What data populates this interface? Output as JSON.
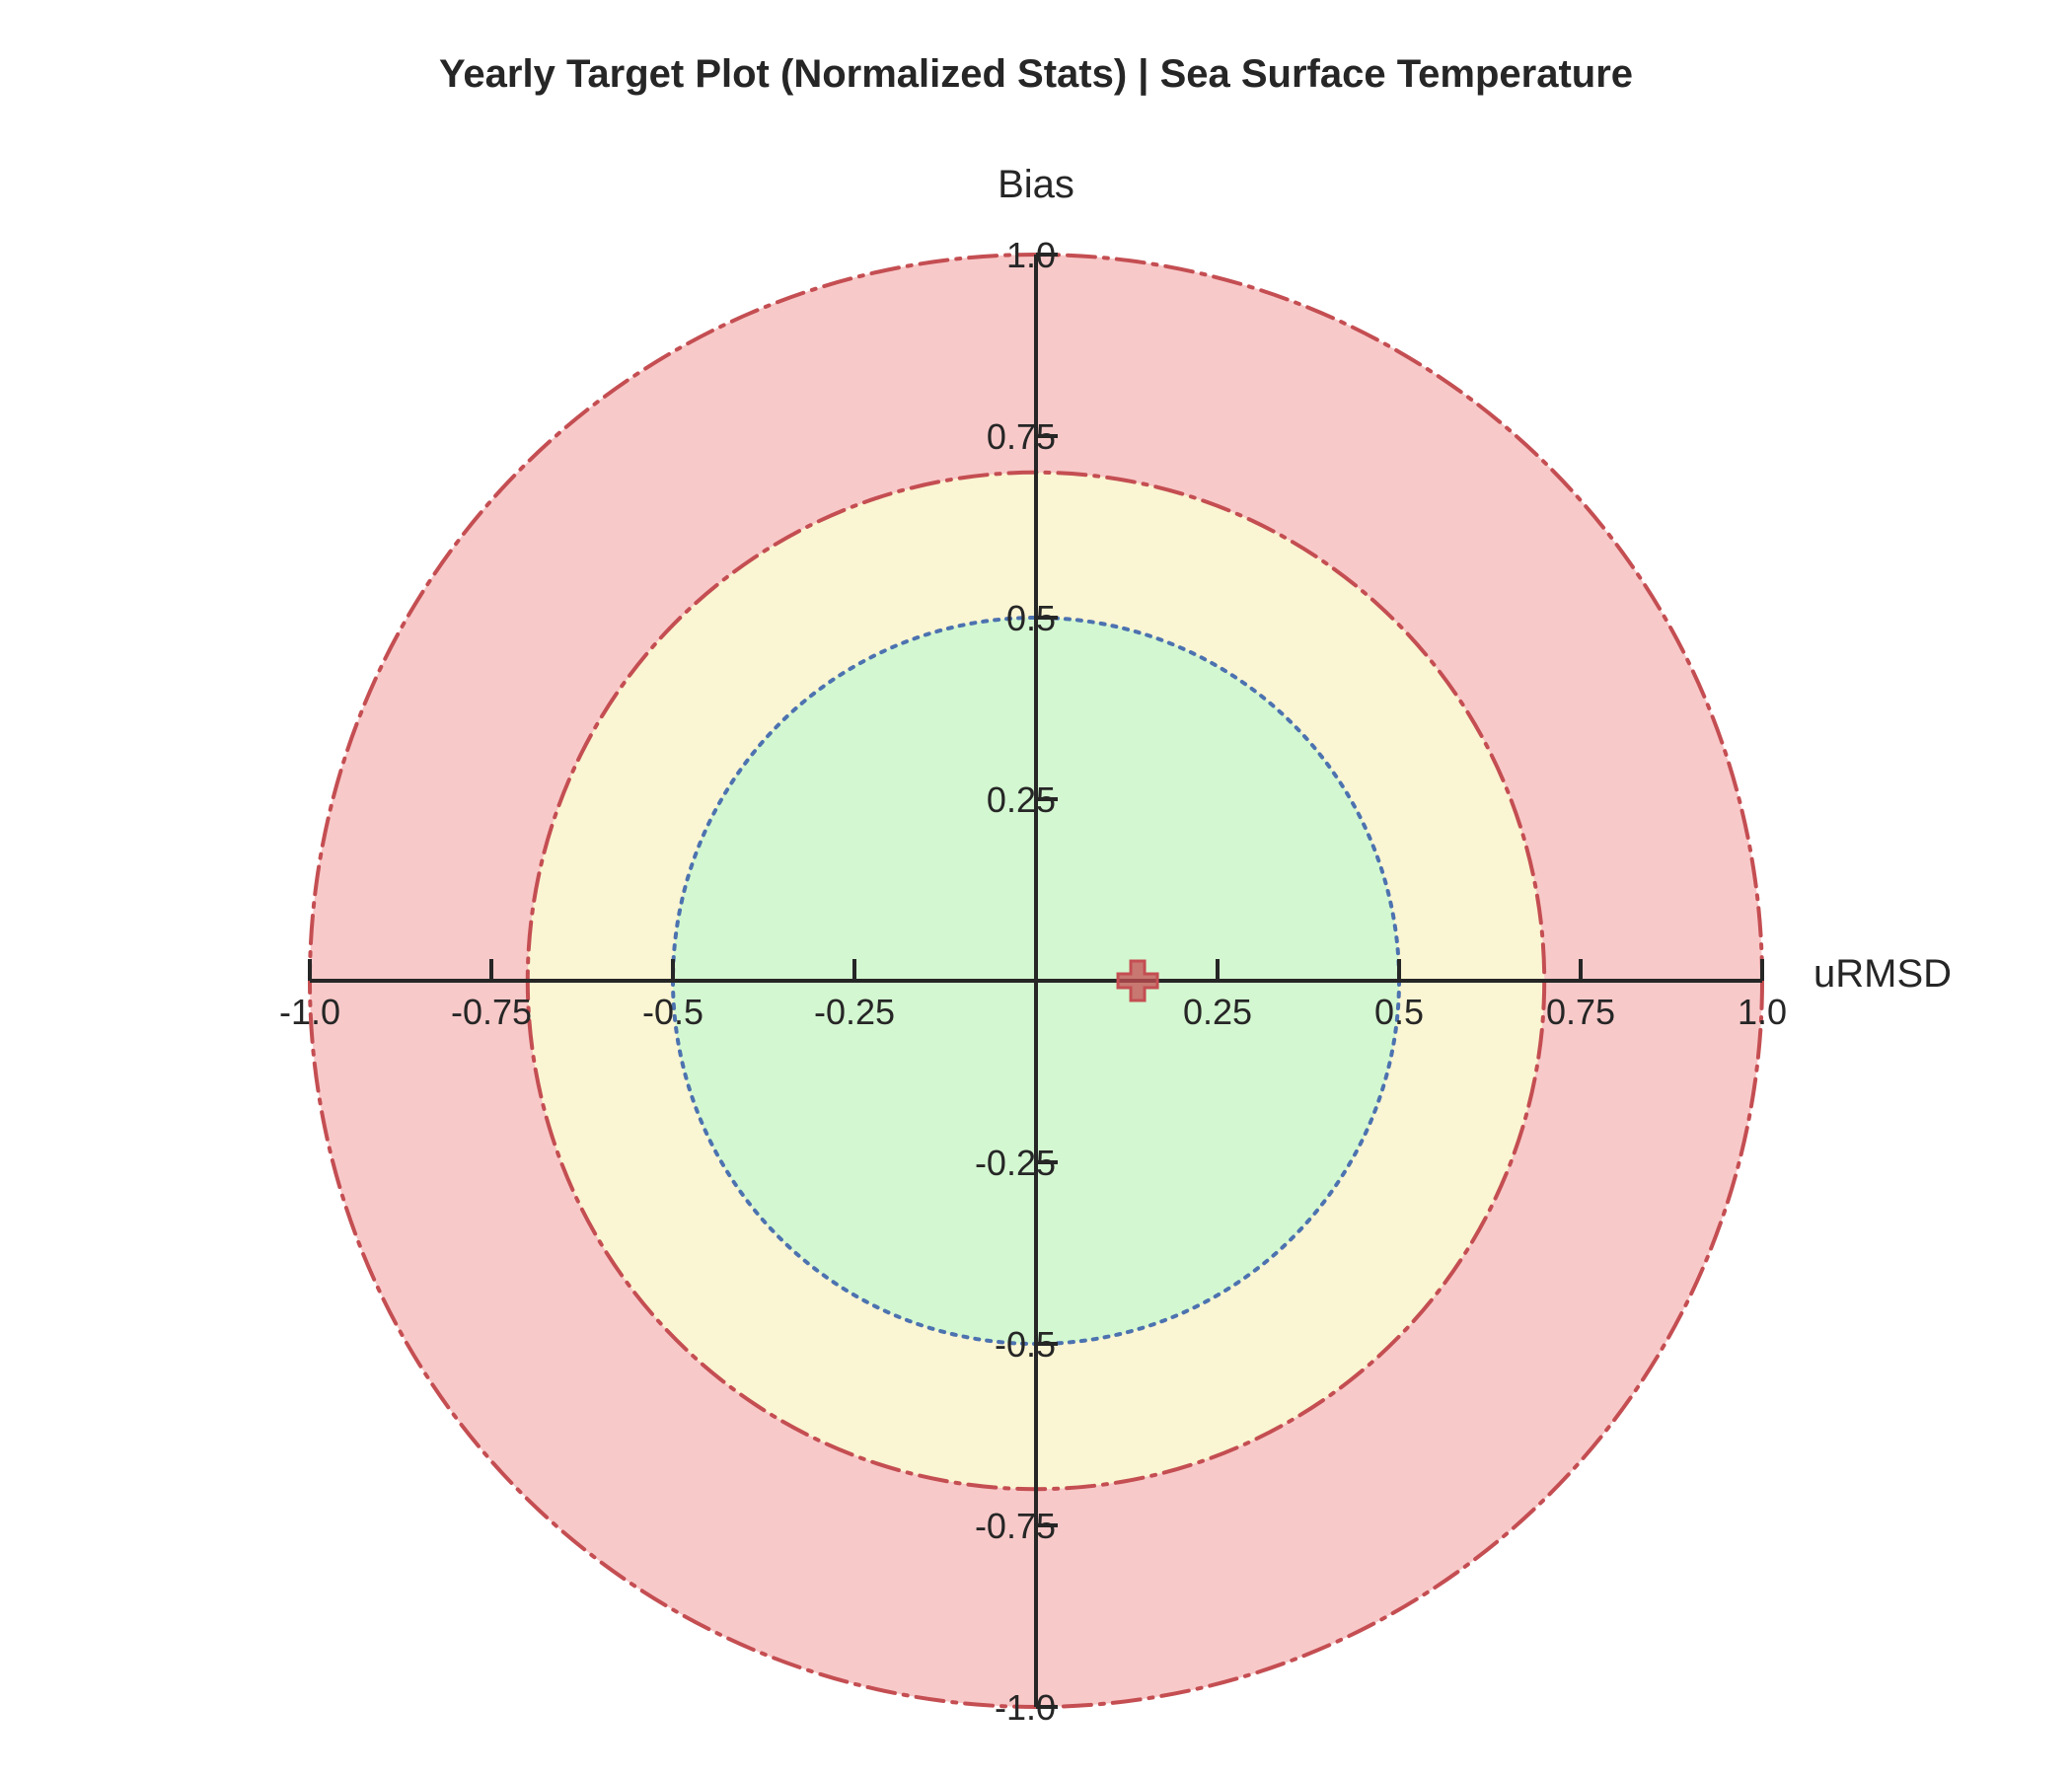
{
  "chart_data": {
    "type": "scatter",
    "title": "Yearly Target Plot (Normalized Stats) | Sea Surface Temperature",
    "xlabel": "uRMSD",
    "ylabel": "Bias",
    "xlim": [
      -1.0,
      1.0
    ],
    "ylim": [
      -1.0,
      1.0
    ],
    "grid": false,
    "x_ticks": [
      "-1.0",
      "-0.75",
      "-0.5",
      "-0.25",
      "0.25",
      "0.5",
      "0.75",
      "1.0"
    ],
    "y_ticks": [
      "1.0",
      "0.75",
      "0.5",
      "0.25",
      "-0.25",
      "-0.5",
      "-0.75",
      "-1.0"
    ],
    "x_tick_values": [
      -1.0,
      -0.75,
      -0.5,
      -0.25,
      0.25,
      0.5,
      0.75,
      1.0
    ],
    "y_tick_values": [
      1.0,
      0.75,
      0.5,
      0.25,
      -0.25,
      -0.5,
      -0.75,
      -1.0
    ],
    "regions": [
      {
        "radius": 1.0,
        "fill": "#f8c9c9",
        "stroke": "#c44e52",
        "line_style": "dash-dot"
      },
      {
        "radius": 0.7,
        "fill": "#faf5d2",
        "stroke": "#c44e52",
        "line_style": "dash-dot"
      },
      {
        "radius": 0.5,
        "fill": "#d3f7d0",
        "stroke": "#4c72b0",
        "line_style": "dotted"
      }
    ],
    "points": [
      {
        "x": 0.14,
        "y": 0.0,
        "marker": "plus",
        "color": "#c44e52"
      }
    ]
  }
}
